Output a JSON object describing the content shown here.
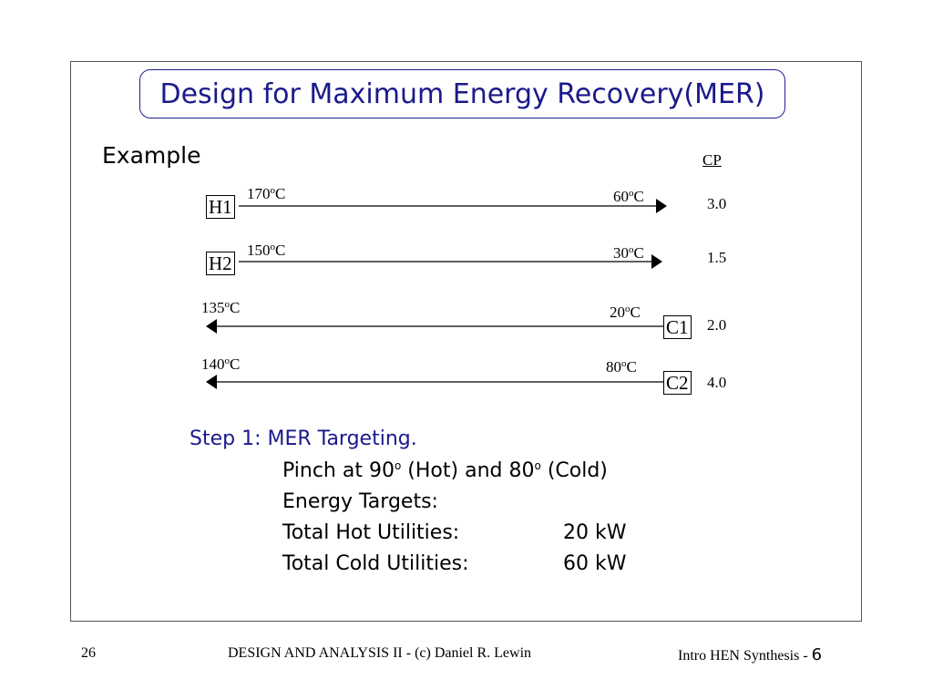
{
  "title": "Design for Maximum Energy Recovery(MER)",
  "example_label": "Example",
  "cp_header": "CP",
  "streams": [
    {
      "name": "H1",
      "start_temp": "170",
      "end_temp": "60",
      "unit": "C",
      "cp": "3.0"
    },
    {
      "name": "H2",
      "start_temp": "150",
      "end_temp": "30",
      "unit": "C",
      "cp": "1.5"
    },
    {
      "name": "C1",
      "start_temp": "20",
      "end_temp": "135",
      "unit": "C",
      "cp": "2.0"
    },
    {
      "name": "C2",
      "start_temp": "80",
      "end_temp": "140",
      "unit": "C",
      "cp": "4.0"
    }
  ],
  "degree_mark": "o",
  "step": {
    "heading": "Step 1:  MER Targeting.",
    "pinch_prefix": "Pinch at 90",
    "pinch_mid": " (Hot) and 80",
    "pinch_suffix": " (Cold)",
    "energy_targets": "Energy Targets:",
    "hot_label": "Total Hot Utilities:",
    "hot_value": "20 kW",
    "cold_label": "Total Cold Utilities:",
    "cold_value": "60 kW"
  },
  "footer": {
    "page_number": "26",
    "center": "DESIGN AND ANALYSIS II - (c) Daniel R. Lewin",
    "right_prefix": "Intro HEN Synthesis - ",
    "right_number": "6"
  }
}
